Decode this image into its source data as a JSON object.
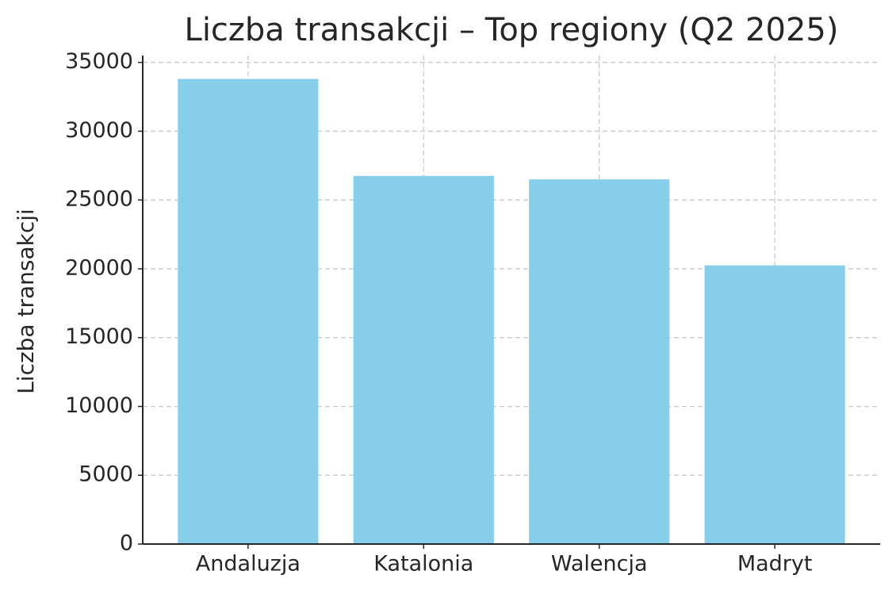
{
  "chart_data": {
    "type": "bar",
    "title": "Liczba transakcji – Top regiony (Q2 2025)",
    "y_label": "Liczba transakcji",
    "categories": [
      "Andaluzja",
      "Katalonia",
      "Walencja",
      "Madryt"
    ],
    "values": [
      33800,
      26750,
      26500,
      20250
    ],
    "color": "#87ceeb",
    "ylim": [
      0,
      35500
    ],
    "yticks": [
      0,
      5000,
      10000,
      15000,
      20000,
      25000,
      30000,
      35000
    ],
    "grid": true
  }
}
